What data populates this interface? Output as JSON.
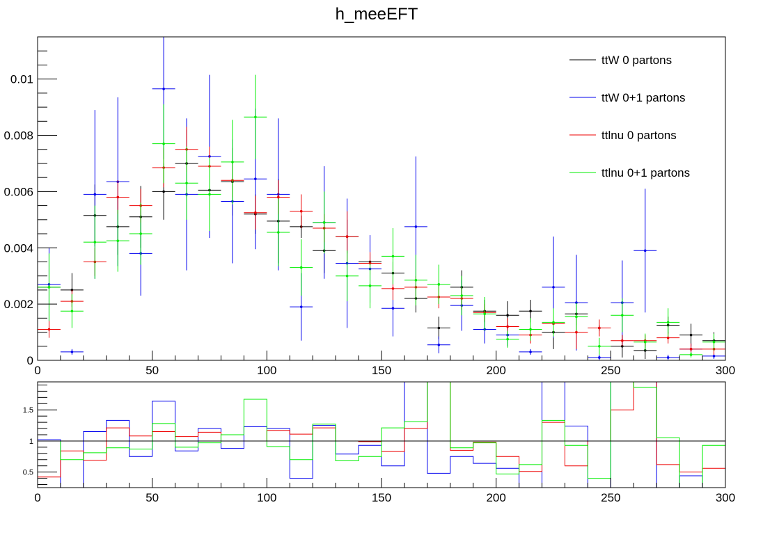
{
  "title": "h_meeEFT",
  "chart_data": [
    {
      "type": "line",
      "title": "h_meeEFT",
      "xlabel": "",
      "ylabel": "",
      "xlim": [
        0,
        300
      ],
      "ylim": [
        0,
        0.0115
      ],
      "grid": false,
      "legend_position": "top-right",
      "x_ticks": [
        0,
        50,
        100,
        150,
        200,
        250,
        300
      ],
      "x_tick_labels": [
        "0",
        "50",
        "100",
        "150",
        "200",
        "250",
        "300"
      ],
      "y_ticks": [
        0,
        0.002,
        0.004,
        0.006,
        0.008,
        0.01
      ],
      "y_tick_labels": [
        "0",
        "0.002",
        "0.004",
        "0.006",
        "0.008",
        "0.01"
      ],
      "bin_width": 10,
      "x": [
        5,
        15,
        25,
        35,
        45,
        55,
        65,
        75,
        85,
        95,
        105,
        115,
        125,
        135,
        145,
        155,
        165,
        175,
        185,
        195,
        205,
        215,
        225,
        235,
        245,
        255,
        265,
        275,
        285,
        295
      ],
      "series": [
        {
          "name": "ttW 0 partons",
          "color": "#000000",
          "values": [
            0.0026,
            0.0025,
            0.00515,
            0.00475,
            0.0051,
            0.006,
            0.007,
            0.00605,
            0.00635,
            0.0052,
            0.00495,
            0.00475,
            0.0039,
            0.0044,
            0.0035,
            0.0031,
            0.0022,
            0.00115,
            0.0026,
            0.00175,
            0.0016,
            0.00175,
            0.001,
            0.00165,
            0.00115,
            0.0005,
            0.00035,
            0.00125,
            0.0009,
            0.0007
          ],
          "errors": [
            0.0012,
            0.0006,
            0.0011,
            0.001,
            0.0011,
            0.001,
            0.0012,
            0.0009,
            0.0012,
            0.0007,
            0.0015,
            0.0004,
            0.0008,
            0.0006,
            0.0003,
            0.0004,
            0.0005,
            0.0004,
            0.0006,
            0.0004,
            0.0005,
            0.0004,
            0.0006,
            0.0004,
            0.0001,
            0.0004,
            0.0003,
            0.0003,
            0.0004,
            0.0003
          ]
        },
        {
          "name": "ttW 0+1 partons",
          "color": "#0000ee",
          "values": [
            0.0027,
            0.0003,
            0.0059,
            0.00635,
            0.0038,
            0.00965,
            0.0059,
            0.00725,
            0.00565,
            0.00645,
            0.0059,
            0.0019,
            0.0049,
            0.00345,
            0.00325,
            0.00185,
            0.00475,
            0.00055,
            0.00195,
            0.0011,
            0.0009,
            0.0003,
            0.0026,
            0.00205,
            0.0001,
            0.00205,
            0.0039,
            0.0001,
            0.0004,
            0.00015
          ],
          "errors": [
            0.0013,
            0.0001,
            0.003,
            0.003,
            0.0015,
            0.0025,
            0.0027,
            0.0029,
            0.0022,
            0.0025,
            0.0027,
            0.0012,
            0.002,
            0.0023,
            0.0012,
            0.001,
            0.0025,
            0.0003,
            0.0009,
            0.0005,
            0.0004,
            0.0001,
            0.0018,
            0.0017,
            0.0001,
            0.0015,
            0.0022,
            0.0001,
            0.0002,
            0.0001
          ]
        },
        {
          "name": "ttlnu 0 partons",
          "color": "#ee0000",
          "values": [
            0.0011,
            0.0021,
            0.0035,
            0.0058,
            0.0055,
            0.00685,
            0.0075,
            0.0069,
            0.0064,
            0.00525,
            0.0058,
            0.0053,
            0.0047,
            0.0044,
            0.00345,
            0.00255,
            0.0026,
            0.00225,
            0.0022,
            0.0017,
            0.0012,
            0.0009,
            0.0013,
            0.001,
            0.00115,
            0.0007,
            0.0007,
            0.0008,
            0.0004,
            0.0004
          ],
          "errors": [
            0.0003,
            0.0004,
            0.0005,
            0.0006,
            0.0006,
            0.0007,
            0.0008,
            0.0007,
            0.0006,
            0.0006,
            0.0006,
            0.0006,
            0.0005,
            0.0009,
            0.0004,
            0.0004,
            0.0004,
            0.0004,
            0.0004,
            0.0003,
            0.0003,
            0.0003,
            0.0003,
            0.0006,
            0.0003,
            0.0002,
            0.0002,
            0.0002,
            0.0002,
            0.0002
          ]
        },
        {
          "name": "ttlnu 0+1 partons",
          "color": "#00ee00",
          "values": [
            0.0026,
            0.00175,
            0.0042,
            0.00425,
            0.0045,
            0.0077,
            0.0063,
            0.0059,
            0.00705,
            0.00865,
            0.00455,
            0.0033,
            0.0049,
            0.003,
            0.00265,
            0.0037,
            0.00285,
            0.0027,
            0.0023,
            0.00165,
            0.00075,
            0.0011,
            0.00135,
            0.00155,
            0.0005,
            0.0016,
            0.00065,
            0.00135,
            0.0002,
            0.00065
          ],
          "errors": [
            0.0012,
            0.0006,
            0.0013,
            0.0011,
            0.0011,
            0.0014,
            0.0013,
            0.0013,
            0.0015,
            0.0015,
            0.0012,
            0.001,
            0.0011,
            0.0009,
            0.0008,
            0.001,
            0.0009,
            0.0007,
            0.0007,
            0.0006,
            0.0003,
            0.0004,
            0.0005,
            0.0005,
            0.0003,
            0.0006,
            0.0003,
            0.0005,
            0.0001,
            0.0003
          ]
        }
      ]
    },
    {
      "type": "line",
      "title": "",
      "xlabel": "",
      "ylabel": "",
      "xlim": [
        0,
        300
      ],
      "ylim": [
        0.25,
        1.95
      ],
      "grid": false,
      "x_ticks": [
        0,
        50,
        100,
        150,
        200,
        250,
        300
      ],
      "x_tick_labels": [
        "0",
        "50",
        "100",
        "150",
        "200",
        "250",
        "300"
      ],
      "y_ticks": [
        0.5,
        1,
        1.5
      ],
      "y_tick_labels": [
        "0.5",
        "1",
        "1.5"
      ],
      "reference_line": 1,
      "bin_edges": [
        0,
        10,
        20,
        30,
        40,
        50,
        60,
        70,
        80,
        90,
        100,
        110,
        120,
        130,
        140,
        150,
        160,
        170,
        180,
        190,
        200,
        210,
        220,
        230,
        240,
        250,
        260,
        270,
        280,
        290,
        300
      ],
      "series": [
        {
          "name": "",
          "color": "#0000ee",
          "values": [
            1.02,
            0.12,
            1.15,
            1.33,
            0.75,
            1.64,
            0.84,
            1.2,
            0.88,
            1.23,
            1.2,
            0.4,
            1.25,
            0.79,
            0.93,
            0.6,
            2.15,
            0.48,
            0.75,
            0.64,
            0.56,
            0.17,
            2.6,
            1.24,
            0.08,
            2.0,
            2.6,
            0.08,
            0.44,
            0.2
          ]
        },
        {
          "name": "",
          "color": "#ee0000",
          "values": [
            0.42,
            0.84,
            0.69,
            1.21,
            1.08,
            1.15,
            1.07,
            1.14,
            1.0,
            1.0,
            1.17,
            1.11,
            1.21,
            1.0,
            0.99,
            0.83,
            1.2,
            1.98,
            0.85,
            0.98,
            0.75,
            0.51,
            1.3,
            0.6,
            1.0,
            1.5,
            2.0,
            0.62,
            0.5,
            0.56
          ]
        },
        {
          "name": "",
          "color": "#00ee00",
          "values": [
            1.0,
            0.7,
            0.81,
            0.89,
            0.87,
            1.28,
            0.9,
            0.97,
            1.1,
            1.67,
            0.91,
            0.7,
            1.27,
            0.68,
            0.75,
            1.21,
            1.31,
            2.35,
            0.89,
            0.97,
            0.47,
            0.62,
            1.33,
            0.93,
            0.4,
            3.2,
            1.86,
            1.05,
            0.25,
            0.93
          ]
        }
      ]
    }
  ]
}
